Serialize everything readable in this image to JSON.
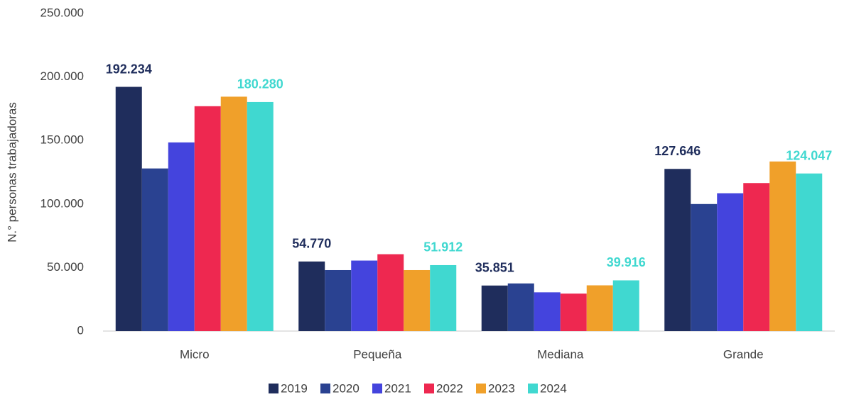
{
  "chart_data": {
    "type": "bar",
    "y_label": "N.° personas trabajadoras",
    "categories": [
      "Micro",
      "Pequeña",
      "Mediana",
      "Grande"
    ],
    "series": [
      {
        "name": "2019",
        "color": "#1f2d5c",
        "values": [
          192234,
          54770,
          35851,
          127646
        ],
        "value_labels": [
          "192.234",
          "54.770",
          "35.851",
          "127.646"
        ]
      },
      {
        "name": "2020",
        "color": "#2a4291",
        "values": [
          128000,
          48000,
          37500,
          100000
        ]
      },
      {
        "name": "2021",
        "color": "#4444dd",
        "values": [
          148500,
          55500,
          30500,
          108500
        ]
      },
      {
        "name": "2022",
        "color": "#ee2850",
        "values": [
          177000,
          60500,
          29500,
          116500
        ]
      },
      {
        "name": "2023",
        "color": "#f0a02a",
        "values": [
          184500,
          48000,
          36000,
          133500
        ]
      },
      {
        "name": "2024",
        "color": "#40d8d0",
        "values": [
          180280,
          51912,
          39916,
          124047
        ],
        "value_labels": [
          "180.280",
          "51.912",
          "39.916",
          "124.047"
        ]
      }
    ],
    "ylim": [
      0,
      250000
    ],
    "yticks": [
      0,
      {
        "value": 50000,
        "label": "50.000"
      },
      {
        "value": 100000,
        "label": "100.000"
      },
      {
        "value": 150000,
        "label": "150.000"
      },
      {
        "value": 200000,
        "label": "200.000"
      },
      {
        "value": 250000,
        "label": "250.000"
      }
    ],
    "grid": false,
    "legend": "bottom"
  }
}
